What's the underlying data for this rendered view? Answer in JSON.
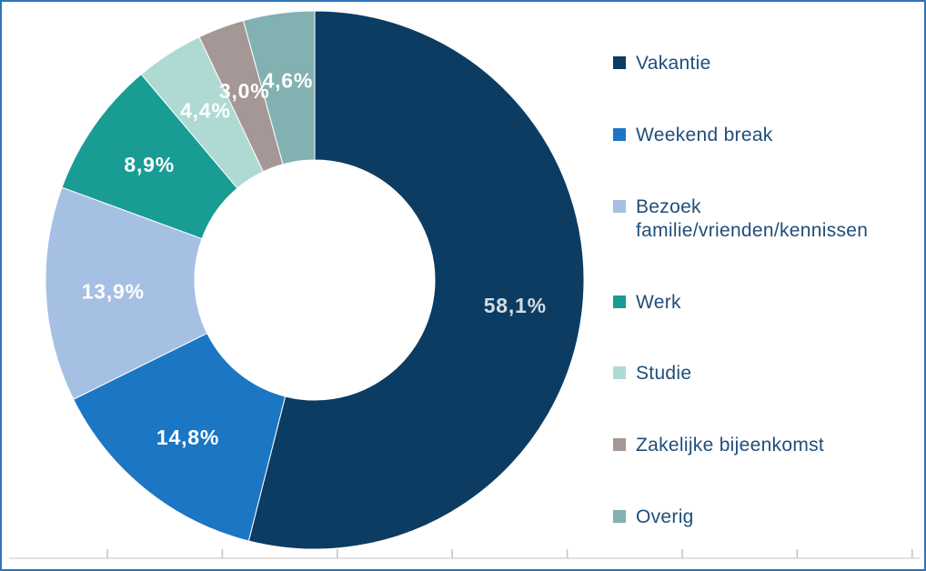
{
  "chart_data": {
    "type": "pie",
    "subtype": "donut",
    "hole_ratio": 0.446,
    "title": "",
    "legend_position": "right",
    "grid": false,
    "slices": [
      {
        "label": "Vakantie",
        "value": 58.1,
        "display": "58,1%",
        "color": "#0C3C61",
        "label_color": "#D2DBE4"
      },
      {
        "label": "Weekend break",
        "value": 14.8,
        "display": "14,8%",
        "color": "#1B76C4",
        "label_color": "#FFFFFF"
      },
      {
        "label": "Bezoek familie/vrienden/kennissen",
        "value": 13.9,
        "display": "13,9%",
        "color": "#A6C0E3",
        "label_color": "#FFFFFF"
      },
      {
        "label": "Werk",
        "value": 8.9,
        "display": "8,9%",
        "color": "#189C94",
        "label_color": "#FFFFFF"
      },
      {
        "label": "Studie",
        "value": 4.4,
        "display": "4,4%",
        "color": "#AEDAD3",
        "label_color": "#FFFFFF"
      },
      {
        "label": "Zakelijke bijeenkomst",
        "value": 3.0,
        "display": "3,0%",
        "color": "#A49795",
        "label_color": "#FFFFFF"
      },
      {
        "label": "Overig",
        "value": 4.6,
        "display": "4,6%",
        "color": "#82B1B2",
        "label_color": "#FFFFFF"
      }
    ],
    "x_axis": {
      "tick_count": 8,
      "labels_visible": false
    }
  },
  "style": {
    "frame_border_color": "#2E75B6",
    "background_color": "#FFFFFF",
    "legend_text_color": "#1F4E79",
    "axis_line_color": "#D9D9D9",
    "axis_tick_color": "#C6C6C6",
    "slice_separator_color": "#FFFFFF"
  }
}
